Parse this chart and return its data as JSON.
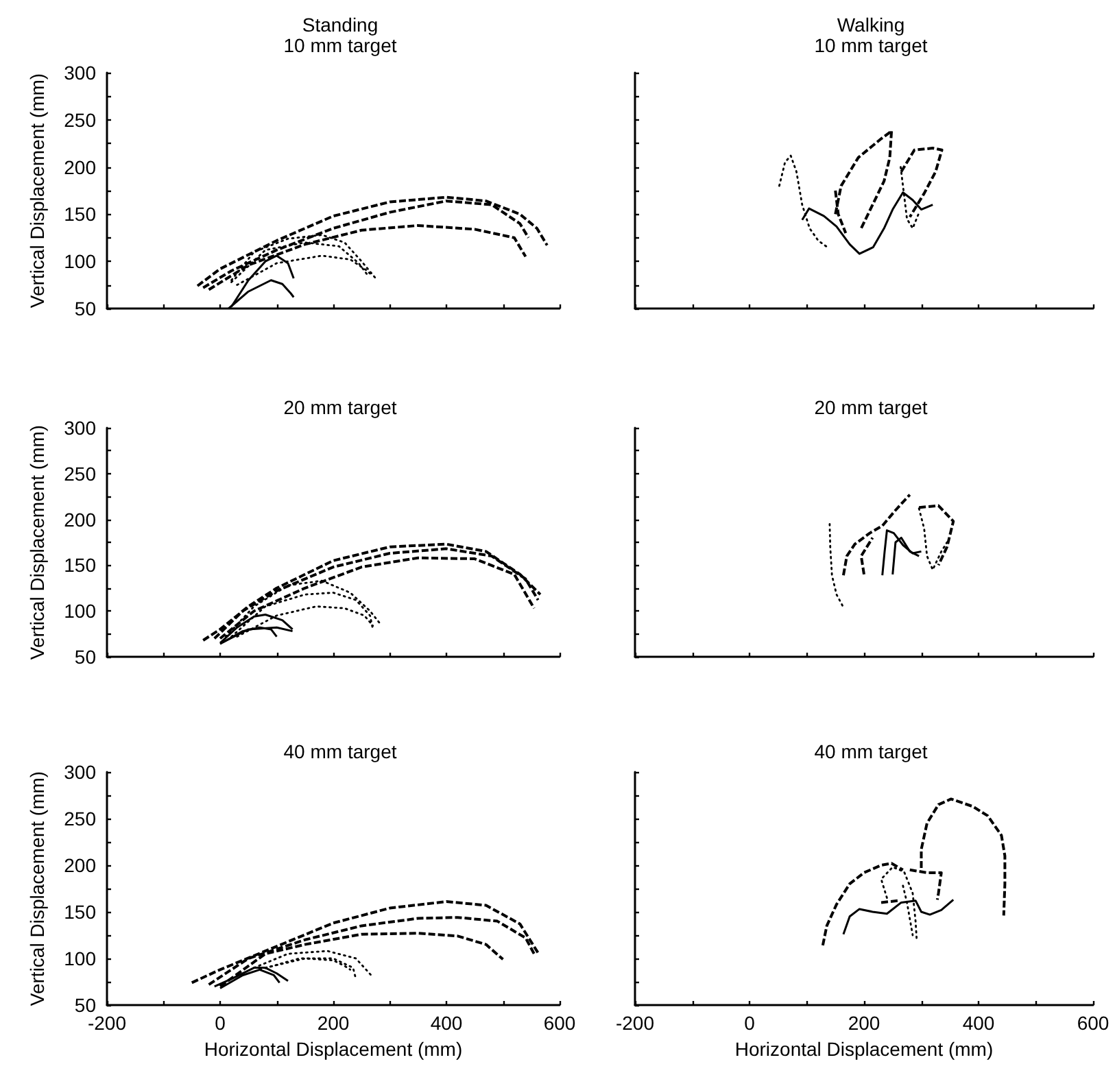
{
  "chart_data": [
    {
      "type": "line",
      "title": "Standing",
      "subtitle": "10 mm target",
      "ylabel": "Vertical Displacement (mm)",
      "xlim": [
        -200,
        600
      ],
      "xticks": [
        -200,
        {
          "value": -100,
          "label": null
        },
        0,
        {
          "value": 100,
          "label": null
        },
        200,
        {
          "value": 300,
          "label": null
        },
        400,
        {
          "value": 500,
          "label": null
        },
        600
      ],
      "ylim": [
        50,
        300
      ],
      "yticks": [
        50,
        {
          "value": 75,
          "label": null
        },
        100,
        {
          "value": 125,
          "label": null
        },
        150,
        {
          "value": 175,
          "label": null
        },
        200,
        {
          "value": 225,
          "label": null
        },
        250,
        {
          "value": 275,
          "label": null
        },
        300
      ],
      "tick_labels": "y",
      "grid": false,
      "marker": "none",
      "series": [
        {
          "color": "#000000",
          "line_style": "dashed",
          "x": [
            -40,
            0,
            100,
            200,
            300,
            400,
            470,
            530,
            560,
            578
          ],
          "values": [
            74,
            92,
            122,
            148,
            163,
            168,
            164,
            150,
            135,
            117
          ]
        },
        {
          "color": "#000000",
          "line_style": "dashed",
          "x": [
            -30,
            20,
            100,
            200,
            300,
            400,
            480,
            530,
            545
          ],
          "values": [
            72,
            90,
            112,
            135,
            152,
            164,
            160,
            140,
            125
          ]
        },
        {
          "color": "#000000",
          "line_style": "dashed",
          "x": [
            -20,
            50,
            150,
            250,
            350,
            450,
            520,
            540
          ],
          "values": [
            70,
            96,
            118,
            133,
            138,
            134,
            125,
            105
          ]
        },
        {
          "color": "#000000",
          "line_style": "dotted",
          "x": [
            20,
            60,
            120,
            180,
            220,
            250,
            275
          ],
          "values": [
            80,
            110,
            124,
            128,
            120,
            100,
            82
          ]
        },
        {
          "color": "#000000",
          "line_style": "dotted",
          "x": [
            20,
            80,
            150,
            210,
            245,
            260
          ],
          "values": [
            78,
            112,
            120,
            116,
            98,
            86
          ]
        },
        {
          "color": "#000000",
          "line_style": "dotted",
          "x": [
            30,
            100,
            180,
            230,
            260,
            270
          ],
          "values": [
            75,
            98,
            106,
            102,
            90,
            84
          ]
        },
        {
          "color": "#000000",
          "line_style": "solid",
          "x": [
            20,
            50,
            80,
            100,
            120,
            130
          ],
          "values": [
            52,
            80,
            100,
            106,
            98,
            82
          ]
        },
        {
          "color": "#000000",
          "line_style": "solid",
          "x": [
            15,
            50,
            90,
            110,
            125,
            130
          ],
          "values": [
            50,
            68,
            80,
            76,
            66,
            62
          ]
        }
      ]
    },
    {
      "type": "line",
      "title": "Walking",
      "subtitle": "10 mm target",
      "xlim": [
        -200,
        600
      ],
      "xticks": [
        -200,
        {
          "value": -100,
          "label": null
        },
        0,
        {
          "value": 100,
          "label": null
        },
        200,
        {
          "value": 300,
          "label": null
        },
        400,
        {
          "value": 500,
          "label": null
        },
        600
      ],
      "ylim": [
        50,
        300
      ],
      "yticks": [
        50,
        {
          "value": 75,
          "label": null
        },
        100,
        {
          "value": 125,
          "label": null
        },
        150,
        {
          "value": 175,
          "label": null
        },
        200,
        {
          "value": 225,
          "label": null
        },
        250,
        {
          "value": 275,
          "label": null
        },
        300
      ],
      "tick_labels": false,
      "grid": false,
      "marker": "none",
      "series": [
        {
          "color": "#000000",
          "line_style": "solid",
          "x": [
            92,
            104,
            130,
            152,
            175,
            192,
            216,
            235,
            250,
            268,
            285,
            300,
            320
          ],
          "values": [
            144,
            156,
            148,
            137,
            118,
            108,
            115,
            135,
            155,
            173,
            165,
            155,
            160
          ]
        },
        {
          "color": "#000000",
          "line_style": "dotted",
          "x": [
            52,
            62,
            72,
            82,
            92,
            105,
            120,
            136
          ],
          "values": [
            180,
            205,
            212,
            195,
            160,
            135,
            122,
            115
          ]
        },
        {
          "color": "#000000",
          "line_style": "dotted",
          "x": [
            264,
            270,
            275,
            285,
            295
          ],
          "values": [
            200,
            170,
            145,
            135,
            150
          ]
        },
        {
          "color": "#000000",
          "line_style": "dashed",
          "x": [
            150,
            160,
            190,
            230,
            248
          ],
          "values": [
            150,
            180,
            210,
            230,
            238
          ]
        },
        {
          "color": "#000000",
          "line_style": "dashed",
          "x": [
            248,
            245,
            235,
            215,
            195
          ],
          "values": [
            238,
            210,
            185,
            160,
            135
          ]
        },
        {
          "color": "#000000",
          "line_style": "dashed",
          "x": [
            265,
            288,
            320,
            336,
            325,
            305,
            280
          ],
          "values": [
            195,
            218,
            220,
            218,
            195,
            172,
            147
          ]
        },
        {
          "color": "#000000",
          "line_style": "dashed",
          "x": [
            150,
            155,
            168
          ],
          "values": [
            175,
            150,
            130
          ]
        }
      ]
    },
    {
      "type": "line",
      "title": "20 mm target",
      "ylabel": "Vertical Displacement (mm)",
      "xlim": [
        -200,
        600
      ],
      "xticks": [
        -200,
        {
          "value": -100,
          "label": null
        },
        0,
        {
          "value": 100,
          "label": null
        },
        200,
        {
          "value": 300,
          "label": null
        },
        400,
        {
          "value": 500,
          "label": null
        },
        600
      ],
      "ylim": [
        50,
        300
      ],
      "yticks": [
        50,
        {
          "value": 75,
          "label": null
        },
        100,
        {
          "value": 125,
          "label": null
        },
        150,
        {
          "value": 175,
          "label": null
        },
        200,
        {
          "value": 225,
          "label": null
        },
        250,
        {
          "value": 275,
          "label": null
        },
        300
      ],
      "tick_labels": "y",
      "grid": false,
      "marker": "none",
      "series": [
        {
          "color": "#000000",
          "line_style": "dashed",
          "x": [
            -30,
            0,
            50,
            100,
            200,
            300,
            400,
            470,
            530,
            566
          ],
          "values": [
            68,
            80,
            105,
            125,
            155,
            170,
            173,
            165,
            140,
            118
          ]
        },
        {
          "color": "#000000",
          "line_style": "dashed",
          "x": [
            -10,
            40,
            100,
            200,
            300,
            400,
            480,
            540,
            562
          ],
          "values": [
            70,
            100,
            122,
            148,
            163,
            168,
            160,
            135,
            112
          ]
        },
        {
          "color": "#000000",
          "line_style": "dashed",
          "x": [
            0,
            60,
            150,
            250,
            350,
            450,
            520,
            555
          ],
          "values": [
            70,
            100,
            125,
            148,
            158,
            157,
            140,
            103
          ]
        },
        {
          "color": "#000000",
          "line_style": "dotted",
          "x": [
            10,
            60,
            120,
            180,
            230,
            265,
            283
          ],
          "values": [
            72,
            105,
            128,
            133,
            120,
            100,
            86
          ]
        },
        {
          "color": "#000000",
          "line_style": "dotted",
          "x": [
            20,
            80,
            150,
            200,
            240,
            265,
            270
          ],
          "values": [
            72,
            105,
            118,
            120,
            112,
            95,
            80
          ]
        },
        {
          "color": "#000000",
          "line_style": "dotted",
          "x": [
            30,
            100,
            170,
            220,
            255,
            270
          ],
          "values": [
            72,
            95,
            105,
            103,
            95,
            84
          ]
        },
        {
          "color": "#000000",
          "line_style": "solid",
          "x": [
            0,
            30,
            60,
            80,
            110,
            128
          ],
          "values": [
            65,
            82,
            94,
            96,
            90,
            80
          ]
        },
        {
          "color": "#000000",
          "line_style": "solid",
          "x": [
            0,
            40,
            70,
            90,
            100
          ],
          "values": [
            64,
            78,
            82,
            80,
            72
          ]
        },
        {
          "color": "#000000",
          "line_style": "solid",
          "x": [
            5,
            50,
            100,
            128
          ],
          "values": [
            66,
            80,
            82,
            78
          ]
        }
      ]
    },
    {
      "type": "line",
      "title": "20 mm target",
      "xlim": [
        -200,
        600
      ],
      "xticks": [
        -200,
        {
          "value": -100,
          "label": null
        },
        0,
        {
          "value": 100,
          "label": null
        },
        200,
        {
          "value": 300,
          "label": null
        },
        400,
        {
          "value": 500,
          "label": null
        },
        600
      ],
      "ylim": [
        50,
        300
      ],
      "yticks": [
        50,
        {
          "value": 75,
          "label": null
        },
        100,
        {
          "value": 125,
          "label": null
        },
        150,
        {
          "value": 175,
          "label": null
        },
        200,
        {
          "value": 225,
          "label": null
        },
        250,
        {
          "value": 275,
          "label": null
        },
        300
      ],
      "tick_labels": false,
      "grid": false,
      "marker": "none",
      "series": [
        {
          "color": "#000000",
          "line_style": "dotted",
          "x": [
            140,
            141,
            144,
            152,
            164
          ],
          "values": [
            195,
            170,
            139,
            118,
            104
          ]
        },
        {
          "color": "#000000",
          "line_style": "dashed",
          "x": [
            164,
            170,
            184,
            210,
            232,
            255,
            280
          ],
          "values": [
            139,
            160,
            173,
            185,
            193,
            210,
            227
          ]
        },
        {
          "color": "#000000",
          "line_style": "dashed",
          "x": [
            200,
            195,
            215
          ],
          "values": [
            140,
            160,
            180
          ]
        },
        {
          "color": "#000000",
          "line_style": "dashed",
          "x": [
            296,
            330,
            356,
            345,
            330
          ],
          "values": [
            213,
            215,
            198,
            170,
            150
          ]
        },
        {
          "color": "#000000",
          "line_style": "solid",
          "x": [
            232,
            236,
            240,
            252,
            268,
            285,
            300
          ],
          "values": [
            139,
            165,
            188,
            185,
            172,
            163,
            165
          ]
        },
        {
          "color": "#000000",
          "line_style": "solid",
          "x": [
            250,
            255,
            265,
            280,
            296
          ],
          "values": [
            140,
            175,
            180,
            165,
            160
          ]
        },
        {
          "color": "#000000",
          "line_style": "dotted",
          "x": [
            296,
            305,
            310,
            320,
            335,
            345
          ],
          "values": [
            212,
            190,
            160,
            145,
            165,
            175
          ]
        }
      ]
    },
    {
      "type": "line",
      "title": "40 mm target",
      "xlabel": "Horizontal Displacement (mm)",
      "ylabel": "Vertical Displacement (mm)",
      "xlim": [
        -200,
        600
      ],
      "xticks": [
        -200,
        {
          "value": -100,
          "label": null
        },
        0,
        {
          "value": 100,
          "label": null
        },
        200,
        {
          "value": 300,
          "label": null
        },
        400,
        {
          "value": 500,
          "label": null
        },
        600
      ],
      "ylim": [
        50,
        300
      ],
      "yticks": [
        50,
        {
          "value": 75,
          "label": null
        },
        100,
        {
          "value": 125,
          "label": null
        },
        150,
        {
          "value": 175,
          "label": null
        },
        200,
        {
          "value": 225,
          "label": null
        },
        250,
        {
          "value": 275,
          "label": null
        },
        300
      ],
      "grid": false,
      "marker": "none",
      "series": [
        {
          "color": "#000000",
          "line_style": "dashed",
          "x": [
            -50,
            0,
            100,
            200,
            300,
            400,
            470,
            530,
            562
          ],
          "values": [
            74,
            88,
            113,
            138,
            154,
            161,
            157,
            137,
            106
          ]
        },
        {
          "color": "#000000",
          "line_style": "dashed",
          "x": [
            -20,
            50,
            150,
            250,
            350,
            420,
            490,
            540,
            555
          ],
          "values": [
            72,
            100,
            120,
            135,
            143,
            144,
            140,
            122,
            105
          ]
        },
        {
          "color": "#000000",
          "line_style": "dashed",
          "x": [
            0,
            80,
            150,
            250,
            350,
            420,
            470,
            500
          ],
          "values": [
            70,
            105,
            115,
            126,
            127,
            124,
            115,
            99
          ]
        },
        {
          "color": "#000000",
          "line_style": "dotted",
          "x": [
            60,
            120,
            190,
            240,
            267
          ],
          "values": [
            90,
            105,
            108,
            100,
            82
          ]
        },
        {
          "color": "#000000",
          "line_style": "dotted",
          "x": [
            70,
            140,
            200,
            235,
            240
          ],
          "values": [
            88,
            100,
            100,
            90,
            78
          ]
        },
        {
          "color": "#000000",
          "line_style": "dotted",
          "x": [
            80,
            150,
            200,
            220,
            230
          ],
          "values": [
            90,
            100,
            98,
            92,
            88
          ]
        },
        {
          "color": "#000000",
          "line_style": "solid",
          "x": [
            -10,
            20,
            60,
            80,
            100,
            120
          ],
          "values": [
            70,
            78,
            90,
            90,
            84,
            76
          ]
        },
        {
          "color": "#000000",
          "line_style": "solid",
          "x": [
            0,
            40,
            70,
            95,
            105
          ],
          "values": [
            68,
            82,
            88,
            82,
            74
          ]
        }
      ]
    },
    {
      "type": "line",
      "title": "40 mm target",
      "xlabel": "Horizontal Displacement (mm)",
      "xlim": [
        -200,
        600
      ],
      "xticks": [
        -200,
        {
          "value": -100,
          "label": null
        },
        0,
        {
          "value": 100,
          "label": null
        },
        200,
        {
          "value": 300,
          "label": null
        },
        400,
        {
          "value": 500,
          "label": null
        },
        600
      ],
      "ylim": [
        50,
        300
      ],
      "yticks": [
        50,
        {
          "value": 75,
          "label": null
        },
        100,
        {
          "value": 125,
          "label": null
        },
        150,
        {
          "value": 175,
          "label": null
        },
        200,
        {
          "value": 225,
          "label": null
        },
        250,
        {
          "value": 275,
          "label": null
        },
        300
      ],
      "tick_labels": "x",
      "grid": false,
      "marker": "none",
      "series": [
        {
          "color": "#000000",
          "line_style": "dashed",
          "x": [
            300,
            300,
            310,
            330,
            352,
            390,
            416,
            440,
            446,
            446,
            444
          ],
          "values": [
            197,
            217,
            245,
            265,
            271,
            263,
            253,
            232,
            210,
            180,
            146
          ]
        },
        {
          "color": "#000000",
          "line_style": "dashed",
          "x": [
            280,
            310,
            335,
            330,
            328
          ],
          "values": [
            195,
            192,
            192,
            170,
            163
          ]
        },
        {
          "color": "#000000",
          "line_style": "dashed",
          "x": [
            128,
            135,
            152,
            175,
            200,
            230,
            248,
            268
          ],
          "values": [
            114,
            135,
            158,
            180,
            192,
            200,
            202,
            195
          ]
        },
        {
          "color": "#000000",
          "line_style": "dashed",
          "x": [
            230,
            260
          ],
          "values": [
            160,
            162
          ]
        },
        {
          "color": "#000000",
          "line_style": "solid",
          "x": [
            164,
            175,
            192,
            215,
            240,
            265,
            290,
            300,
            315,
            335,
            356
          ],
          "values": [
            126,
            145,
            153,
            150,
            148,
            160,
            162,
            150,
            147,
            152,
            163
          ]
        },
        {
          "color": "#000000",
          "line_style": "dotted",
          "x": [
            240,
            230,
            250,
            270,
            285,
            290,
            292
          ],
          "values": [
            165,
            185,
            198,
            193,
            170,
            140,
            120
          ]
        },
        {
          "color": "#000000",
          "line_style": "dotted",
          "x": [
            268,
            275,
            285
          ],
          "values": [
            178,
            160,
            125
          ]
        }
      ]
    }
  ]
}
